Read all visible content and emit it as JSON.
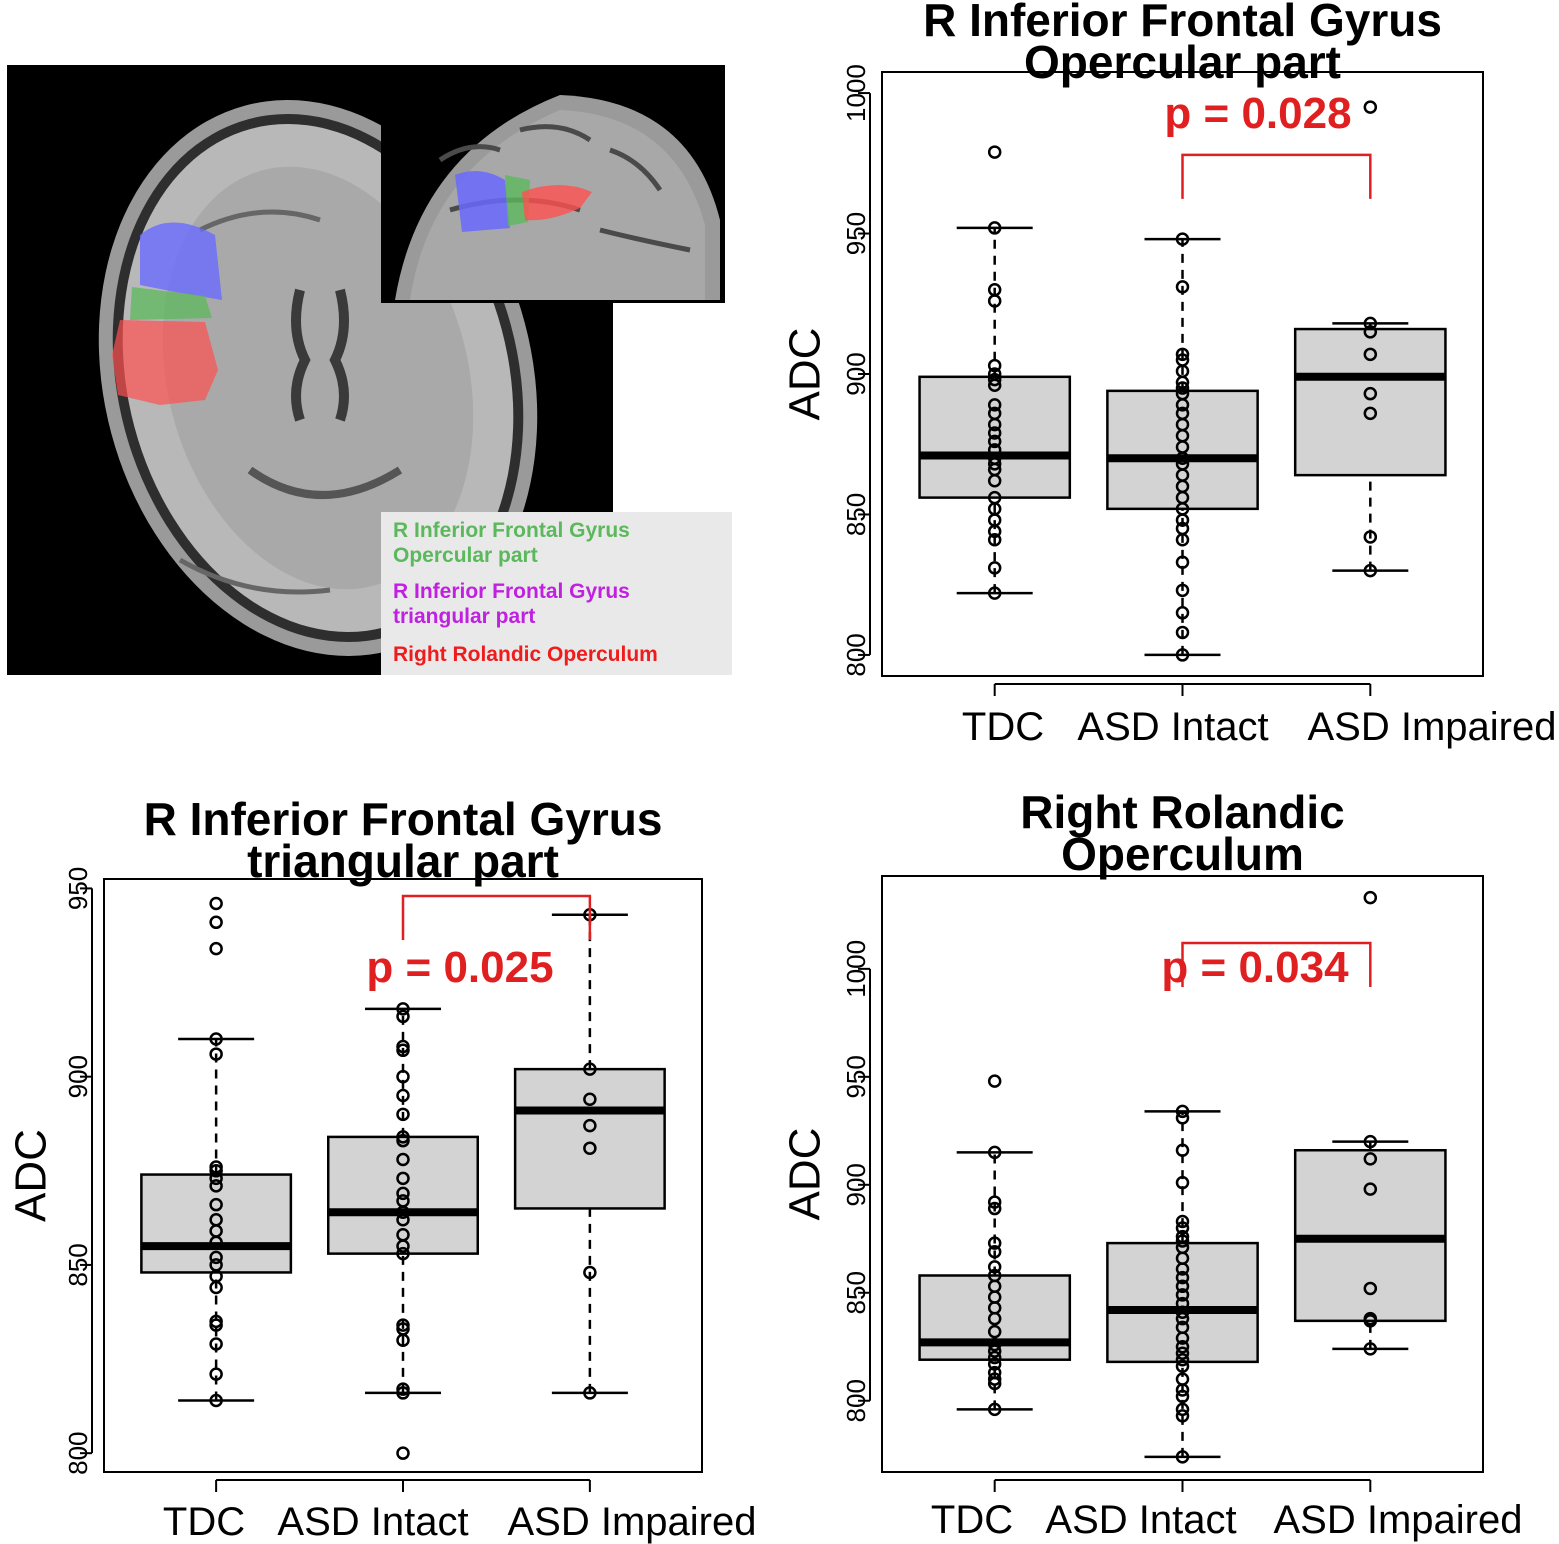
{
  "figure": {
    "colors": {
      "box_fill": "#d3d3d3",
      "stroke": "#000000",
      "significance": "#e02020",
      "mri_bg": "#000000"
    }
  },
  "mri_panel": {
    "legend": [
      {
        "line1": "R Inferior Frontal Gyrus",
        "line2": "Opercular part",
        "color": "#5cb85c"
      },
      {
        "line1": "R Inferior Frontal Gyrus",
        "line2": "triangular part",
        "color": "#c020e0"
      },
      {
        "line1": "Right Rolandic Operculum",
        "line2": "",
        "color": "#ee1c1c"
      }
    ],
    "region_colors": {
      "opercular": "#5cb85c",
      "triangular": "#6a6aff",
      "rolandic": "#ff5050"
    }
  },
  "chart_data": [
    {
      "type": "box",
      "title": "R Inferior Frontal Gyrus Opercular part",
      "title_lines": [
        "R Inferior Frontal Gyrus",
        "Opercular part"
      ],
      "ylabel": "ADC",
      "xlabel": "",
      "categories": [
        "TDC",
        "ASD Intact",
        "ASD Impaired"
      ],
      "yticks": [
        800,
        850,
        900,
        950,
        1000
      ],
      "ylim": [
        792.5,
        1007.5
      ],
      "boxes": [
        {
          "whisker_low": 822,
          "q1": 856,
          "median": 871,
          "q3": 899,
          "whisker_high": 952
        },
        {
          "whisker_low": 800,
          "q1": 852,
          "median": 870,
          "q3": 894,
          "whisker_high": 948
        },
        {
          "whisker_low": 830,
          "q1": 864,
          "median": 899,
          "q3": 916,
          "whisker_high": 918
        }
      ],
      "points": [
        [
          822,
          831,
          841,
          844,
          848,
          852,
          856,
          862,
          866,
          868,
          870,
          873,
          876,
          879,
          882,
          886,
          889,
          896,
          898,
          900,
          903,
          926,
          930,
          952,
          979
        ],
        [
          800,
          808,
          815,
          823,
          833,
          841,
          845,
          848,
          852,
          856,
          860,
          864,
          868,
          870,
          874,
          878,
          882,
          886,
          889,
          893,
          895,
          897,
          901,
          905,
          907,
          931,
          948
        ],
        [
          830,
          842,
          886,
          893,
          907,
          915,
          918,
          995
        ]
      ],
      "significance": {
        "label": "p = 0.028",
        "from": 1,
        "to": 2,
        "bracket_y": 978
      }
    },
    {
      "type": "box",
      "title": "R Inferior Frontal Gyrus triangular part",
      "title_lines": [
        "R Inferior Frontal Gyrus",
        "triangular part"
      ],
      "ylabel": "ADC",
      "xlabel": "",
      "categories": [
        "TDC",
        "ASD Intact",
        "ASD Impaired"
      ],
      "yticks": [
        800,
        850,
        900,
        950
      ],
      "ylim": [
        795,
        952.5
      ],
      "boxes": [
        {
          "whisker_low": 814,
          "q1": 848,
          "median": 855,
          "q3": 874,
          "whisker_high": 910
        },
        {
          "whisker_low": 816,
          "q1": 853,
          "median": 864,
          "q3": 884,
          "whisker_high": 918
        },
        {
          "whisker_low": 816,
          "q1": 865,
          "median": 891,
          "q3": 902,
          "whisker_high": 943
        }
      ],
      "points": [
        [
          814,
          821,
          829,
          834,
          835,
          844,
          847,
          850,
          852,
          856,
          859,
          862,
          866,
          871,
          873,
          875,
          876,
          906,
          910,
          934,
          941,
          946
        ],
        [
          800,
          816,
          817,
          830,
          833,
          834,
          853,
          855,
          858,
          862,
          864,
          867,
          869,
          873,
          878,
          883,
          884,
          890,
          895,
          900,
          907,
          908,
          916,
          918
        ],
        [
          816,
          848,
          881,
          887,
          894,
          902,
          943
        ]
      ],
      "significance": {
        "label": "p = 0.025",
        "from": 1,
        "to": 2,
        "bracket_y": 948
      }
    },
    {
      "type": "box",
      "title": "Right Rolandic Operculum",
      "title_lines": [
        "Right Rolandic",
        "Operculum"
      ],
      "ylabel": "ADC",
      "xlabel": "",
      "categories": [
        "TDC",
        "ASD Intact",
        "ASD Impaired"
      ],
      "yticks": [
        800,
        850,
        900,
        950,
        1000
      ],
      "ylim": [
        767,
        1043
      ],
      "boxes": [
        {
          "whisker_low": 796,
          "q1": 819,
          "median": 827,
          "q3": 858,
          "whisker_high": 915
        },
        {
          "whisker_low": 774,
          "q1": 818,
          "median": 842,
          "q3": 873,
          "whisker_high": 934
        },
        {
          "whisker_low": 824,
          "q1": 837,
          "median": 875,
          "q3": 916,
          "whisker_high": 920
        }
      ],
      "points": [
        [
          796,
          808,
          810,
          813,
          817,
          820,
          823,
          826,
          832,
          838,
          843,
          848,
          853,
          858,
          862,
          869,
          873,
          889,
          892,
          915,
          948
        ],
        [
          774,
          793,
          796,
          802,
          805,
          810,
          816,
          819,
          822,
          825,
          829,
          834,
          838,
          841,
          845,
          849,
          853,
          857,
          861,
          866,
          871,
          874,
          876,
          880,
          883,
          901,
          916,
          931,
          934
        ],
        [
          824,
          837,
          838,
          852,
          898,
          912,
          920,
          1033
        ]
      ],
      "significance": {
        "label": "p = 0.034",
        "from": 1,
        "to": 2,
        "bracket_y": 1012
      }
    }
  ]
}
